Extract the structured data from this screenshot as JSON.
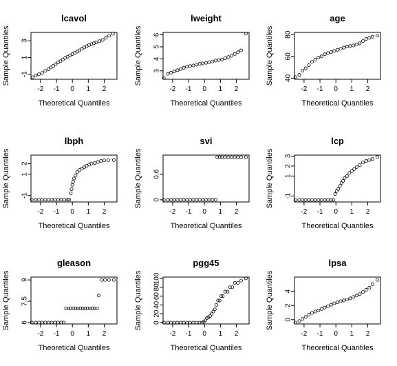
{
  "chart_data": [
    {
      "type": "scatter",
      "title": "lcavol",
      "xlabel": "Theoretical Quantiles",
      "ylabel": "Sample Quantiles",
      "xlim": [
        -2.6,
        2.8
      ],
      "ylim": [
        -1.6,
        4.0
      ],
      "xticks": [
        -2,
        -1,
        0,
        1,
        2
      ],
      "yticks": [
        -1,
        1,
        3
      ],
      "points": [
        [
          -2.5,
          -1.35
        ],
        [
          -2.3,
          -1.15
        ],
        [
          -2.1,
          -1.0
        ],
        [
          -1.9,
          -0.85
        ],
        [
          -1.7,
          -0.6
        ],
        [
          -1.5,
          -0.4
        ],
        [
          -1.35,
          -0.2
        ],
        [
          -1.2,
          0.0
        ],
        [
          -1.05,
          0.2
        ],
        [
          -0.9,
          0.4
        ],
        [
          -0.75,
          0.55
        ],
        [
          -0.6,
          0.75
        ],
        [
          -0.45,
          0.95
        ],
        [
          -0.3,
          1.1
        ],
        [
          -0.15,
          1.25
        ],
        [
          0.0,
          1.4
        ],
        [
          0.15,
          1.55
        ],
        [
          0.3,
          1.7
        ],
        [
          0.45,
          1.85
        ],
        [
          0.6,
          2.05
        ],
        [
          0.75,
          2.2
        ],
        [
          0.9,
          2.35
        ],
        [
          1.05,
          2.5
        ],
        [
          1.2,
          2.6
        ],
        [
          1.35,
          2.7
        ],
        [
          1.5,
          2.8
        ],
        [
          1.7,
          2.95
        ],
        [
          1.9,
          3.1
        ],
        [
          2.1,
          3.35
        ],
        [
          2.3,
          3.6
        ],
        [
          2.55,
          3.85
        ]
      ]
    },
    {
      "type": "scatter",
      "title": "lweight",
      "xlabel": "Theoretical Quantiles",
      "ylabel": "Sample Quantiles",
      "xlim": [
        -2.6,
        2.8
      ],
      "ylim": [
        2.3,
        6.2
      ],
      "xticks": [
        -2,
        -1,
        0,
        1,
        2
      ],
      "yticks": [
        3,
        4,
        5,
        6
      ],
      "points": [
        [
          -2.55,
          2.4
        ],
        [
          -2.3,
          2.75
        ],
        [
          -2.1,
          2.85
        ],
        [
          -1.9,
          2.95
        ],
        [
          -1.7,
          3.05
        ],
        [
          -1.5,
          3.15
        ],
        [
          -1.3,
          3.25
        ],
        [
          -1.1,
          3.35
        ],
        [
          -0.9,
          3.4
        ],
        [
          -0.7,
          3.45
        ],
        [
          -0.5,
          3.52
        ],
        [
          -0.3,
          3.58
        ],
        [
          -0.1,
          3.62
        ],
        [
          0.1,
          3.67
        ],
        [
          0.3,
          3.72
        ],
        [
          0.5,
          3.78
        ],
        [
          0.7,
          3.85
        ],
        [
          0.9,
          3.9
        ],
        [
          1.1,
          3.95
        ],
        [
          1.3,
          4.05
        ],
        [
          1.5,
          4.15
        ],
        [
          1.7,
          4.25
        ],
        [
          1.9,
          4.4
        ],
        [
          2.1,
          4.55
        ],
        [
          2.3,
          4.7
        ],
        [
          2.6,
          6.1
        ]
      ]
    },
    {
      "type": "scatter",
      "title": "age",
      "xlabel": "Theoretical Quantiles",
      "ylabel": "Sample Quantiles",
      "xlim": [
        -2.6,
        2.8
      ],
      "ylim": [
        39,
        82
      ],
      "xticks": [
        -2,
        -1,
        0,
        1,
        2
      ],
      "yticks": [
        40,
        60,
        80
      ],
      "points": [
        [
          -2.55,
          41
        ],
        [
          -2.3,
          43
        ],
        [
          -2.1,
          47
        ],
        [
          -1.9,
          49
        ],
        [
          -1.7,
          52
        ],
        [
          -1.5,
          55
        ],
        [
          -1.3,
          57
        ],
        [
          -1.1,
          59
        ],
        [
          -0.9,
          60
        ],
        [
          -0.7,
          62
        ],
        [
          -0.5,
          63
        ],
        [
          -0.3,
          64
        ],
        [
          -0.1,
          65
        ],
        [
          0.1,
          66
        ],
        [
          0.3,
          67
        ],
        [
          0.5,
          68
        ],
        [
          0.7,
          69
        ],
        [
          0.9,
          69.5
        ],
        [
          1.1,
          70
        ],
        [
          1.3,
          71
        ],
        [
          1.5,
          72
        ],
        [
          1.7,
          74
        ],
        [
          1.9,
          76
        ],
        [
          2.1,
          77
        ],
        [
          2.3,
          78
        ],
        [
          2.6,
          79
        ]
      ]
    },
    {
      "type": "scatter",
      "title": "lbph",
      "xlabel": "Theoretical Quantiles",
      "ylabel": "Sample Quantiles",
      "xlim": [
        -2.6,
        2.8
      ],
      "ylim": [
        -1.6,
        2.8
      ],
      "xticks": [
        -2,
        -1,
        0,
        1,
        2
      ],
      "yticks": [
        -1,
        1,
        2
      ],
      "points": [
        [
          -2.55,
          -1.39
        ],
        [
          -2.3,
          -1.39
        ],
        [
          -2.1,
          -1.39
        ],
        [
          -1.9,
          -1.39
        ],
        [
          -1.7,
          -1.39
        ],
        [
          -1.5,
          -1.39
        ],
        [
          -1.3,
          -1.39
        ],
        [
          -1.1,
          -1.39
        ],
        [
          -0.9,
          -1.39
        ],
        [
          -0.7,
          -1.39
        ],
        [
          -0.5,
          -1.39
        ],
        [
          -0.3,
          -1.39
        ],
        [
          -0.2,
          -1.39
        ],
        [
          -0.1,
          -0.8
        ],
        [
          -0.05,
          -0.4
        ],
        [
          0.0,
          0.0
        ],
        [
          0.05,
          0.3
        ],
        [
          0.1,
          0.6
        ],
        [
          0.2,
          0.9
        ],
        [
          0.3,
          1.2
        ],
        [
          0.45,
          1.4
        ],
        [
          0.6,
          1.55
        ],
        [
          0.75,
          1.65
        ],
        [
          0.9,
          1.8
        ],
        [
          1.05,
          1.9
        ],
        [
          1.2,
          2.0
        ],
        [
          1.4,
          2.05
        ],
        [
          1.6,
          2.15
        ],
        [
          1.8,
          2.25
        ],
        [
          2.0,
          2.3
        ],
        [
          2.25,
          2.32
        ],
        [
          2.6,
          2.33
        ]
      ]
    },
    {
      "type": "scatter",
      "title": "svi",
      "xlabel": "Theoretical Quantiles",
      "ylabel": "Sample Quantiles",
      "xlim": [
        -2.6,
        2.8
      ],
      "ylim": [
        -0.05,
        1.05
      ],
      "xticks": [
        -2,
        -1,
        0,
        1,
        2
      ],
      "yticks": [
        0.0,
        0.6
      ],
      "points": [
        [
          -2.55,
          0
        ],
        [
          -2.3,
          0
        ],
        [
          -2.1,
          0
        ],
        [
          -1.9,
          0
        ],
        [
          -1.7,
          0
        ],
        [
          -1.5,
          0
        ],
        [
          -1.3,
          0
        ],
        [
          -1.1,
          0
        ],
        [
          -0.9,
          0
        ],
        [
          -0.7,
          0
        ],
        [
          -0.5,
          0
        ],
        [
          -0.3,
          0
        ],
        [
          -0.1,
          0
        ],
        [
          0.1,
          0
        ],
        [
          0.3,
          0
        ],
        [
          0.5,
          0
        ],
        [
          0.7,
          0
        ],
        [
          0.8,
          1
        ],
        [
          0.95,
          1
        ],
        [
          1.1,
          1
        ],
        [
          1.3,
          1
        ],
        [
          1.5,
          1
        ],
        [
          1.7,
          1
        ],
        [
          1.9,
          1
        ],
        [
          2.1,
          1
        ],
        [
          2.3,
          1
        ],
        [
          2.6,
          1
        ]
      ]
    },
    {
      "type": "scatter",
      "title": "lcp",
      "xlabel": "Theoretical Quantiles",
      "ylabel": "Sample Quantiles",
      "xlim": [
        -2.6,
        2.8
      ],
      "ylim": [
        -1.6,
        3.1
      ],
      "xticks": [
        -2,
        -1,
        0,
        1,
        2
      ],
      "yticks": [
        -1,
        1,
        2,
        3
      ],
      "points": [
        [
          -2.55,
          -1.39
        ],
        [
          -2.3,
          -1.39
        ],
        [
          -2.1,
          -1.39
        ],
        [
          -1.9,
          -1.39
        ],
        [
          -1.7,
          -1.39
        ],
        [
          -1.5,
          -1.39
        ],
        [
          -1.3,
          -1.39
        ],
        [
          -1.1,
          -1.39
        ],
        [
          -0.9,
          -1.39
        ],
        [
          -0.7,
          -1.39
        ],
        [
          -0.5,
          -1.39
        ],
        [
          -0.3,
          -1.39
        ],
        [
          -0.15,
          -1.39
        ],
        [
          -0.05,
          -0.8
        ],
        [
          0.05,
          -0.5
        ],
        [
          0.15,
          -0.3
        ],
        [
          0.25,
          0.0
        ],
        [
          0.35,
          0.3
        ],
        [
          0.45,
          0.5
        ],
        [
          0.55,
          0.8
        ],
        [
          0.7,
          1.0
        ],
        [
          0.85,
          1.3
        ],
        [
          1.0,
          1.5
        ],
        [
          1.15,
          1.7
        ],
        [
          1.3,
          1.9
        ],
        [
          1.5,
          2.1
        ],
        [
          1.7,
          2.35
        ],
        [
          1.9,
          2.5
        ],
        [
          2.1,
          2.6
        ],
        [
          2.3,
          2.7
        ],
        [
          2.6,
          2.9
        ]
      ]
    },
    {
      "type": "scatter",
      "title": "gleason",
      "xlabel": "Theoretical Quantiles",
      "ylabel": "Sample Quantiles",
      "xlim": [
        -2.6,
        2.8
      ],
      "ylim": [
        5.9,
        9.2
      ],
      "xticks": [
        -2,
        -1,
        0,
        1,
        2
      ],
      "yticks": [
        6.0,
        7.5,
        9.0
      ],
      "points": [
        [
          -2.55,
          6
        ],
        [
          -2.3,
          6
        ],
        [
          -2.1,
          6
        ],
        [
          -1.9,
          6
        ],
        [
          -1.7,
          6
        ],
        [
          -1.5,
          6
        ],
        [
          -1.3,
          6
        ],
        [
          -1.1,
          6
        ],
        [
          -0.9,
          6
        ],
        [
          -0.7,
          6
        ],
        [
          -0.55,
          6
        ],
        [
          -0.4,
          7
        ],
        [
          -0.25,
          7
        ],
        [
          -0.1,
          7
        ],
        [
          0.05,
          7
        ],
        [
          0.2,
          7
        ],
        [
          0.35,
          7
        ],
        [
          0.5,
          7
        ],
        [
          0.65,
          7
        ],
        [
          0.8,
          7
        ],
        [
          0.95,
          7
        ],
        [
          1.1,
          7
        ],
        [
          1.25,
          7
        ],
        [
          1.4,
          7
        ],
        [
          1.55,
          7
        ],
        [
          1.65,
          7.9
        ],
        [
          1.85,
          9
        ],
        [
          2.05,
          9
        ],
        [
          2.3,
          9
        ],
        [
          2.6,
          9
        ]
      ]
    },
    {
      "type": "scatter",
      "title": "pgg45",
      "xlabel": "Theoretical Quantiles",
      "ylabel": "Sample Quantiles",
      "xlim": [
        -2.6,
        2.8
      ],
      "ylim": [
        -3,
        103
      ],
      "xticks": [
        -2,
        -1,
        0,
        1,
        2
      ],
      "yticks": [
        0,
        20,
        40,
        60,
        80,
        100
      ],
      "points": [
        [
          -2.55,
          0
        ],
        [
          -2.3,
          0
        ],
        [
          -2.1,
          0
        ],
        [
          -1.9,
          0
        ],
        [
          -1.7,
          0
        ],
        [
          -1.5,
          0
        ],
        [
          -1.3,
          0
        ],
        [
          -1.1,
          0
        ],
        [
          -0.9,
          0
        ],
        [
          -0.7,
          0
        ],
        [
          -0.5,
          0
        ],
        [
          -0.3,
          0
        ],
        [
          -0.15,
          0
        ],
        [
          -0.05,
          2
        ],
        [
          0.05,
          5
        ],
        [
          0.15,
          10
        ],
        [
          0.25,
          12
        ],
        [
          0.35,
          15
        ],
        [
          0.45,
          20
        ],
        [
          0.55,
          25
        ],
        [
          0.65,
          30
        ],
        [
          0.75,
          40
        ],
        [
          0.85,
          50
        ],
        [
          0.95,
          50
        ],
        [
          1.05,
          60
        ],
        [
          1.15,
          60
        ],
        [
          1.3,
          70
        ],
        [
          1.45,
          70
        ],
        [
          1.6,
          80
        ],
        [
          1.75,
          80
        ],
        [
          1.9,
          90
        ],
        [
          2.1,
          90
        ],
        [
          2.3,
          95
        ],
        [
          2.6,
          100
        ]
      ]
    },
    {
      "type": "scatter",
      "title": "lpsa",
      "xlabel": "Theoretical Quantiles",
      "ylabel": "Sample Quantiles",
      "xlim": [
        -2.6,
        2.8
      ],
      "ylim": [
        -0.6,
        6.0
      ],
      "xticks": [
        -2,
        -1,
        0,
        1,
        2
      ],
      "yticks": [
        0,
        2,
        4
      ],
      "points": [
        [
          -2.55,
          -0.4
        ],
        [
          -2.3,
          -0.2
        ],
        [
          -2.1,
          0.1
        ],
        [
          -1.9,
          0.4
        ],
        [
          -1.7,
          0.7
        ],
        [
          -1.5,
          0.95
        ],
        [
          -1.3,
          1.15
        ],
        [
          -1.1,
          1.3
        ],
        [
          -0.9,
          1.5
        ],
        [
          -0.7,
          1.7
        ],
        [
          -0.5,
          1.9
        ],
        [
          -0.3,
          2.1
        ],
        [
          -0.1,
          2.3
        ],
        [
          0.1,
          2.45
        ],
        [
          0.3,
          2.6
        ],
        [
          0.5,
          2.7
        ],
        [
          0.7,
          2.85
        ],
        [
          0.9,
          3.0
        ],
        [
          1.1,
          3.2
        ],
        [
          1.3,
          3.4
        ],
        [
          1.5,
          3.6
        ],
        [
          1.7,
          3.9
        ],
        [
          1.9,
          4.2
        ],
        [
          2.1,
          4.5
        ],
        [
          2.3,
          5.0
        ],
        [
          2.6,
          5.6
        ]
      ]
    }
  ]
}
